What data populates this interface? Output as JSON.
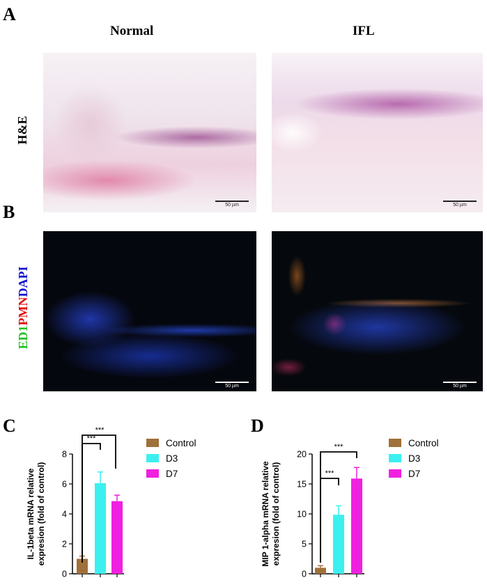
{
  "panels": {
    "A": {
      "letter": "A",
      "row_label": "H&E",
      "col_normal": "Normal",
      "col_ifl": "IFL"
    },
    "B": {
      "letter": "B",
      "row_label_parts": [
        "ED1",
        "PMN",
        "DAPI"
      ]
    },
    "C": {
      "letter": "C"
    },
    "D": {
      "letter": "D"
    }
  },
  "scale_bar_label": "50 µm",
  "colors": {
    "control": "#a0703a",
    "d3": "#3cf0f0",
    "d7": "#f020e0",
    "ed1": "#22c022",
    "pmn": "#e01010",
    "dapi": "#1010d0"
  },
  "chart_data": [
    {
      "type": "bar",
      "panel": "C",
      "categories": [
        "Control",
        "D3",
        "D7"
      ],
      "values": [
        1.0,
        6.05,
        4.85
      ],
      "errors": [
        0.18,
        0.75,
        0.4
      ],
      "ylabel_line1": "IL-1beta mRNA relative",
      "ylabel_line2": "expresion  (fold of control)",
      "ylim": [
        0,
        8
      ],
      "yticks": [
        "0",
        "2",
        "4",
        "6",
        "8"
      ],
      "legend": [
        "Control",
        "D3",
        "D7"
      ],
      "legend_position": "right",
      "significance": [
        {
          "pair": [
            "Control",
            "D3"
          ],
          "label": "***"
        },
        {
          "pair": [
            "Control",
            "D7"
          ],
          "label": "***"
        }
      ]
    },
    {
      "type": "bar",
      "panel": "D",
      "categories": [
        "Control",
        "D3",
        "D7"
      ],
      "values": [
        1.0,
        9.85,
        15.9
      ],
      "errors": [
        0.35,
        1.5,
        1.85
      ],
      "ylabel_line1": "MIP 1-alpha mRNA relative",
      "ylabel_line2": "expresion  (fold of control)",
      "ylim": [
        0,
        20
      ],
      "yticks": [
        "0",
        "5",
        "10",
        "15",
        "20"
      ],
      "legend": [
        "Control",
        "D3",
        "D7"
      ],
      "legend_position": "right",
      "significance": [
        {
          "pair": [
            "Control",
            "D3"
          ],
          "label": "***"
        },
        {
          "pair": [
            "Control",
            "D7"
          ],
          "label": "***"
        }
      ]
    }
  ]
}
